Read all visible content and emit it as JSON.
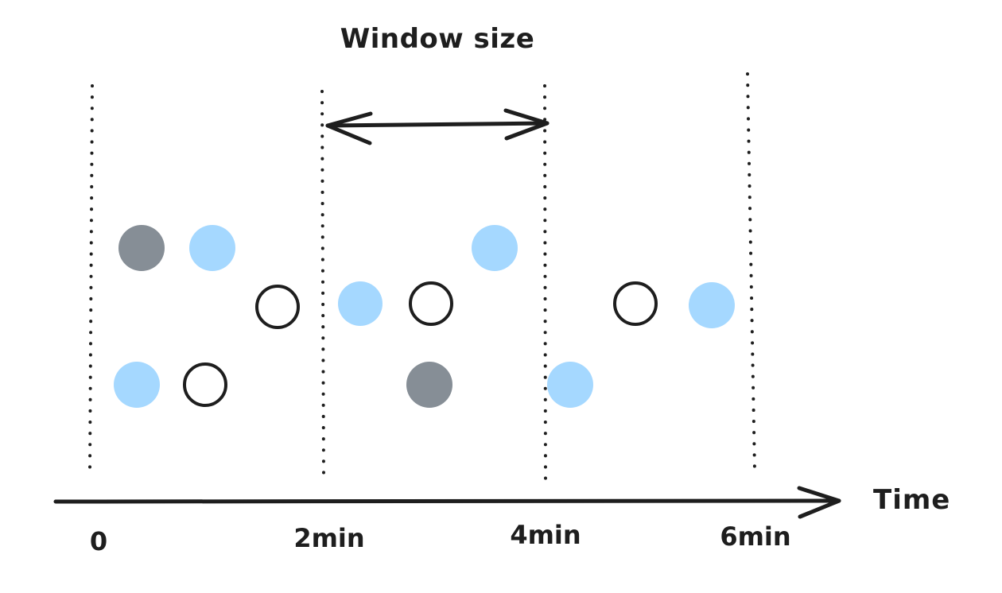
{
  "title": "Window size",
  "axis_label": "Time",
  "ticks": [
    "0",
    "2min",
    "4min",
    "6min"
  ],
  "colors": {
    "stroke": "#1e1e1e",
    "event_gray": "#868e96",
    "event_blue": "#a5d8ff",
    "background": "#ffffff"
  },
  "events": [
    {
      "kind": "gray-filled"
    },
    {
      "kind": "blue-filled"
    },
    {
      "kind": "hollow"
    },
    {
      "kind": "blue-filled"
    },
    {
      "kind": "hollow"
    },
    {
      "kind": "blue-filled"
    },
    {
      "kind": "blue-filled"
    },
    {
      "kind": "hollow"
    },
    {
      "kind": "gray-filled"
    },
    {
      "kind": "blue-filled"
    },
    {
      "kind": "hollow"
    },
    {
      "kind": "blue-filled"
    }
  ]
}
